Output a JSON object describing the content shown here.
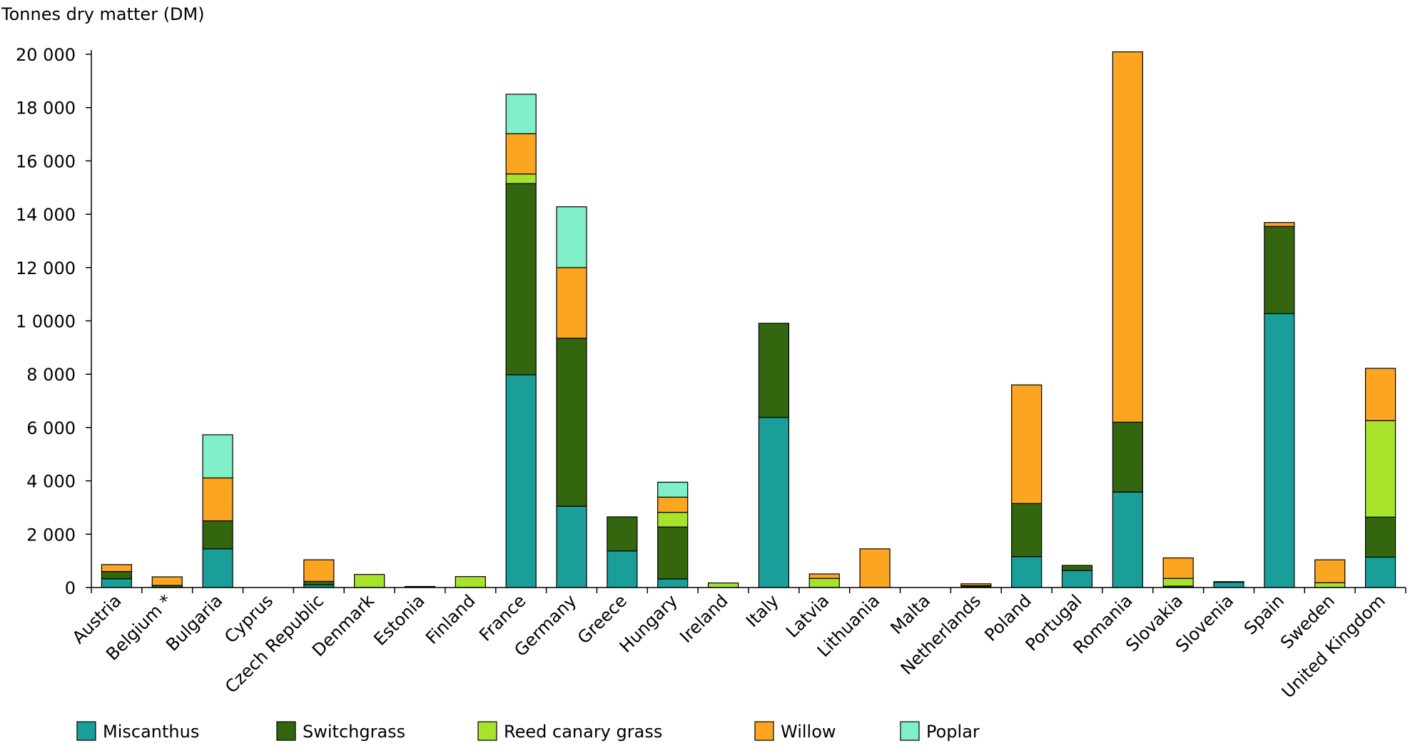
{
  "chart_data": {
    "type": "bar",
    "stacked": true,
    "ylabel": "Tonnes dry matter (DM)",
    "xlabel": "",
    "ylim": [
      0,
      20000
    ],
    "yticks": [
      0,
      2000,
      4000,
      6000,
      8000,
      10000,
      12000,
      14000,
      16000,
      18000,
      20000
    ],
    "ytick_labels": [
      "0",
      "2 000",
      "4 000",
      "6 000",
      "8 000",
      "1 0000",
      "12 000",
      "14 000",
      "16 000",
      "18 000",
      "20 000"
    ],
    "grid": false,
    "legend_position": "bottom",
    "categories": [
      "Austria",
      "Belgium *",
      "Bulgaria",
      "Cyprus",
      "Czech Republic",
      "Denmark",
      "Estonia",
      "Finland",
      "France",
      "Germany",
      "Greece",
      "Hungary",
      "Ireland",
      "Italy",
      "Latvia",
      "Lithuania",
      "Malta",
      "Netherlands",
      "Poland",
      "Portugal",
      "Romania",
      "Slovakia",
      "Slovenia",
      "Spain",
      "Sweden",
      "United Kingdom"
    ],
    "series": [
      {
        "name": "Miscanthus",
        "color": "#1a9e9a",
        "values": [
          330,
          0,
          1450,
          0,
          100,
          0,
          0,
          0,
          7980,
          3050,
          1370,
          320,
          0,
          6380,
          0,
          0,
          0,
          30,
          1160,
          640,
          3580,
          50,
          200,
          10270,
          0,
          1140
        ]
      },
      {
        "name": "Switchgrass",
        "color": "#33660e",
        "values": [
          270,
          80,
          1050,
          0,
          130,
          0,
          40,
          0,
          7170,
          6300,
          1280,
          1950,
          0,
          3530,
          0,
          0,
          0,
          40,
          1990,
          190,
          2620,
          0,
          20,
          3270,
          0,
          1500
        ]
      },
      {
        "name": "Reed canary grass",
        "color": "#a8e32c",
        "values": [
          0,
          0,
          0,
          0,
          0,
          490,
          0,
          410,
          360,
          0,
          0,
          550,
          170,
          0,
          340,
          0,
          0,
          0,
          0,
          0,
          0,
          290,
          0,
          0,
          180,
          3620
        ]
      },
      {
        "name": "Willow",
        "color": "#fba520",
        "values": [
          260,
          320,
          1610,
          0,
          810,
          0,
          0,
          0,
          1510,
          2650,
          0,
          570,
          0,
          0,
          170,
          1450,
          0,
          70,
          4450,
          0,
          13890,
          770,
          0,
          150,
          860,
          1960
        ]
      },
      {
        "name": "Poplar",
        "color": "#7ff0c8",
        "values": [
          0,
          0,
          1620,
          0,
          0,
          0,
          0,
          0,
          1480,
          2280,
          0,
          560,
          0,
          0,
          0,
          0,
          0,
          0,
          0,
          0,
          0,
          0,
          0,
          0,
          0,
          0
        ]
      }
    ]
  }
}
